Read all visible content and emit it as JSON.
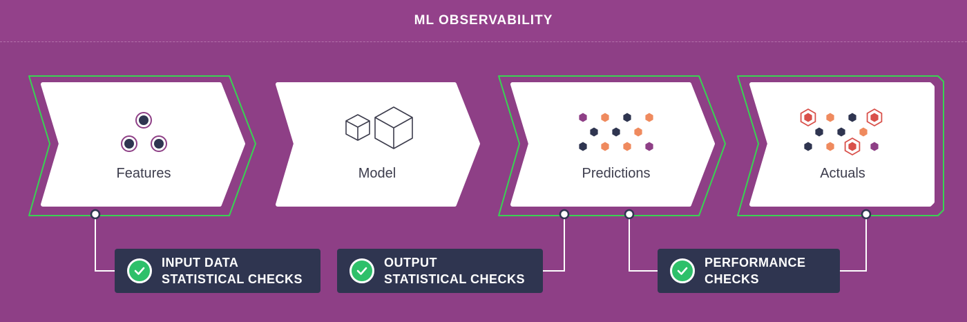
{
  "header": {
    "title": "ML OBSERVABILITY"
  },
  "stages": [
    {
      "label": "Features",
      "icon": "nodes-icon"
    },
    {
      "label": "Model",
      "icon": "cubes-icon"
    },
    {
      "label": "Predictions",
      "icon": "hexagon-grid-icon"
    },
    {
      "label": "Actuals",
      "icon": "highlighted-hexagon-grid-icon"
    }
  ],
  "checks": [
    {
      "line1": "INPUT DATA",
      "line2": "STATISTICAL CHECKS"
    },
    {
      "line1": "OUTPUT",
      "line2": "STATISTICAL CHECKS"
    },
    {
      "line1": "PERFORMANCE",
      "line2": "CHECKS"
    }
  ],
  "colors": {
    "background": "#8e3f86",
    "highlight_outline": "#39d353",
    "check_box": "#2f3550",
    "check_icon": "#2ec06a",
    "node_dark": "#2f3550",
    "hex_orange": "#ef8a5e",
    "hex_purple": "#8e3f86",
    "hex_dark": "#2f3550",
    "hex_red_outline": "#d9504a"
  }
}
